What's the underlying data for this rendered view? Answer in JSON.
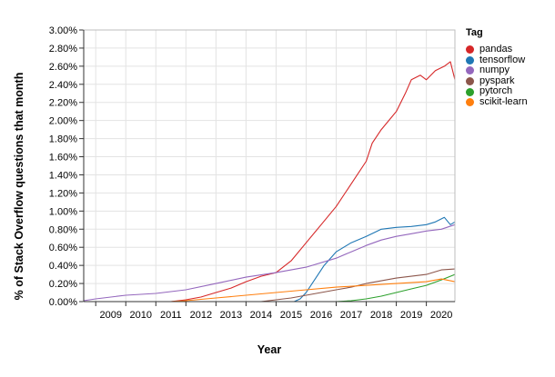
{
  "chart_data": {
    "type": "line",
    "xlabel": "Year",
    "ylabel": "% of Stack Overflow questions that month",
    "xlim": [
      2008.6,
      2020.95
    ],
    "ylim": [
      0,
      3.0
    ],
    "x_ticks": [
      "2009",
      "2010",
      "2011",
      "2012",
      "2013",
      "2014",
      "2015",
      "2016",
      "2017",
      "2018",
      "2019",
      "2020"
    ],
    "y_ticks": [
      "0.00%",
      "0.20%",
      "0.40%",
      "0.60%",
      "0.80%",
      "1.00%",
      "1.20%",
      "1.40%",
      "1.60%",
      "1.80%",
      "2.00%",
      "2.20%",
      "2.40%",
      "2.60%",
      "2.80%",
      "3.00%"
    ],
    "grid": true,
    "legend": {
      "title": "Tag",
      "position": "right"
    },
    "series": [
      {
        "name": "pandas",
        "color": "#d62728",
        "x": [
          2008.6,
          2011.5,
          2012.0,
          2012.5,
          2013.0,
          2013.5,
          2014.0,
          2014.5,
          2015.0,
          2015.5,
          2016.0,
          2016.5,
          2017.0,
          2017.5,
          2018.0,
          2018.2,
          2018.5,
          2019.0,
          2019.3,
          2019.5,
          2019.8,
          2020.0,
          2020.3,
          2020.6,
          2020.8,
          2020.95
        ],
        "y": [
          0,
          0,
          0.02,
          0.05,
          0.1,
          0.15,
          0.22,
          0.28,
          0.32,
          0.45,
          0.65,
          0.85,
          1.05,
          1.3,
          1.55,
          1.75,
          1.9,
          2.1,
          2.3,
          2.45,
          2.5,
          2.45,
          2.55,
          2.6,
          2.65,
          2.45
        ]
      },
      {
        "name": "tensorflow",
        "color": "#1f77b4",
        "x": [
          2008.6,
          2015.6,
          2015.8,
          2016.0,
          2016.3,
          2016.6,
          2017.0,
          2017.5,
          2018.0,
          2018.5,
          2019.0,
          2019.5,
          2020.0,
          2020.3,
          2020.6,
          2020.8,
          2020.95
        ],
        "y": [
          0,
          0,
          0.03,
          0.1,
          0.25,
          0.4,
          0.55,
          0.65,
          0.72,
          0.8,
          0.82,
          0.83,
          0.85,
          0.88,
          0.93,
          0.85,
          0.88
        ]
      },
      {
        "name": "numpy",
        "color": "#9467bd",
        "x": [
          2008.6,
          2009.0,
          2010.0,
          2011.0,
          2012.0,
          2013.0,
          2014.0,
          2015.0,
          2016.0,
          2017.0,
          2017.5,
          2018.0,
          2018.5,
          2019.0,
          2019.5,
          2020.0,
          2020.5,
          2020.95
        ],
        "y": [
          0.01,
          0.03,
          0.07,
          0.09,
          0.13,
          0.2,
          0.27,
          0.32,
          0.38,
          0.48,
          0.55,
          0.62,
          0.68,
          0.72,
          0.75,
          0.78,
          0.8,
          0.85
        ]
      },
      {
        "name": "pyspark",
        "color": "#8c564b",
        "x": [
          2008.6,
          2014.5,
          2015.0,
          2015.5,
          2016.0,
          2016.5,
          2017.0,
          2017.5,
          2018.0,
          2018.5,
          2019.0,
          2019.5,
          2020.0,
          2020.5,
          2020.95
        ],
        "y": [
          0,
          0,
          0.02,
          0.04,
          0.07,
          0.1,
          0.13,
          0.16,
          0.2,
          0.23,
          0.26,
          0.28,
          0.3,
          0.35,
          0.36
        ]
      },
      {
        "name": "pytorch",
        "color": "#2ca02c",
        "x": [
          2008.6,
          2017.0,
          2017.5,
          2018.0,
          2018.5,
          2019.0,
          2019.5,
          2020.0,
          2020.5,
          2020.95
        ],
        "y": [
          0,
          0,
          0.01,
          0.03,
          0.06,
          0.1,
          0.14,
          0.18,
          0.24,
          0.3
        ]
      },
      {
        "name": "scikit-learn",
        "color": "#ff7f0e",
        "x": [
          2008.6,
          2011.5,
          2012.0,
          2013.0,
          2014.0,
          2015.0,
          2016.0,
          2017.0,
          2018.0,
          2019.0,
          2020.0,
          2020.5,
          2020.95
        ],
        "y": [
          0,
          0,
          0.01,
          0.04,
          0.07,
          0.1,
          0.13,
          0.16,
          0.18,
          0.2,
          0.22,
          0.25,
          0.22
        ]
      }
    ]
  }
}
